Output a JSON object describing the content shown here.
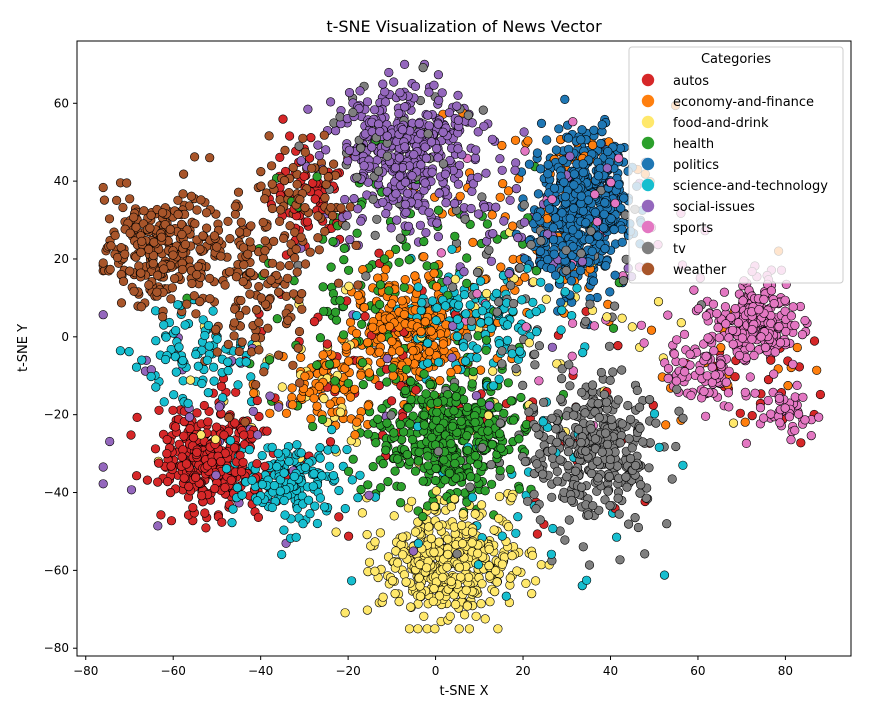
{
  "chart_data": {
    "type": "scatter",
    "title": "t-SNE Visualization of News Vector",
    "xlabel": "t-SNE X",
    "ylabel": "t-SNE Y",
    "xlim": [
      -82,
      95
    ],
    "ylim": [
      -82,
      76
    ],
    "xticks": [
      -80,
      -60,
      -40,
      -20,
      0,
      20,
      40,
      60,
      80
    ],
    "yticks": [
      -80,
      -60,
      -40,
      -20,
      0,
      20,
      40,
      60
    ],
    "xtick_labels": [
      "−80",
      "−60",
      "−40",
      "−20",
      "0",
      "20",
      "40",
      "60",
      "80"
    ],
    "ytick_labels": [
      "−80",
      "−60",
      "−40",
      "−20",
      "0",
      "20",
      "40",
      "60"
    ],
    "grid": false,
    "legend": {
      "title": "Categories",
      "placement": "top-right"
    },
    "series": [
      {
        "name": "autos",
        "color": "#d62728",
        "clusters": [
          {
            "cx": -51,
            "cy": -31,
            "sx": 6,
            "sy": 7,
            "n": 320
          },
          {
            "cx": -30,
            "cy": 35,
            "sx": 5,
            "sy": 6,
            "n": 70
          },
          {
            "cx": -20,
            "cy": -10,
            "sx": 15,
            "sy": 15,
            "n": 60
          },
          {
            "cx": 20,
            "cy": -20,
            "sx": 20,
            "sy": 20,
            "n": 30
          },
          {
            "cx": 75,
            "cy": -12,
            "sx": 8,
            "sy": 8,
            "n": 20
          }
        ]
      },
      {
        "name": "economy-and-finance",
        "color": "#ff7f0e",
        "clusters": [
          {
            "cx": -6,
            "cy": 1,
            "sx": 7,
            "sy": 7,
            "n": 280
          },
          {
            "cx": -25,
            "cy": -13,
            "sx": 6,
            "sy": 5,
            "n": 90
          },
          {
            "cx": 15,
            "cy": 25,
            "sx": 15,
            "sy": 15,
            "n": 80
          },
          {
            "cx": 35,
            "cy": 45,
            "sx": 8,
            "sy": 6,
            "n": 25
          },
          {
            "cx": 70,
            "cy": -10,
            "sx": 10,
            "sy": 10,
            "n": 20
          }
        ]
      },
      {
        "name": "food-and-drink",
        "color": "#ffe86b",
        "clusters": [
          {
            "cx": 3,
            "cy": -58,
            "sx": 8,
            "sy": 7,
            "n": 420
          },
          {
            "cx": -25,
            "cy": -15,
            "sx": 15,
            "sy": 15,
            "n": 50
          },
          {
            "cx": 20,
            "cy": 0,
            "sx": 20,
            "sy": 20,
            "n": 40
          }
        ]
      },
      {
        "name": "health",
        "color": "#2ca02c",
        "clusters": [
          {
            "cx": 3,
            "cy": -25,
            "sx": 9,
            "sy": 8,
            "n": 460
          },
          {
            "cx": -20,
            "cy": 5,
            "sx": 15,
            "sy": 15,
            "n": 70
          },
          {
            "cx": 0,
            "cy": 20,
            "sx": 20,
            "sy": 15,
            "n": 60
          }
        ]
      },
      {
        "name": "politics",
        "color": "#1f77b4",
        "clusters": [
          {
            "cx": 34,
            "cy": 34,
            "sx": 5,
            "sy": 9,
            "n": 500
          },
          {
            "cx": 28,
            "cy": 20,
            "sx": 4,
            "sy": 4,
            "n": 60
          }
        ]
      },
      {
        "name": "science-and-technology",
        "color": "#17becf",
        "clusters": [
          {
            "cx": -33,
            "cy": -37,
            "sx": 6,
            "sy": 6,
            "n": 180
          },
          {
            "cx": -55,
            "cy": -5,
            "sx": 7,
            "sy": 6,
            "n": 90
          },
          {
            "cx": 10,
            "cy": 5,
            "sx": 9,
            "sy": 6,
            "n": 140
          },
          {
            "cx": 20,
            "cy": -40,
            "sx": 15,
            "sy": 15,
            "n": 40
          }
        ]
      },
      {
        "name": "social-issues",
        "color": "#9467bd",
        "clusters": [
          {
            "cx": -7,
            "cy": 47,
            "sx": 8,
            "sy": 9,
            "n": 440
          },
          {
            "cx": 25,
            "cy": 30,
            "sx": 12,
            "sy": 12,
            "n": 50
          },
          {
            "cx": -40,
            "cy": -20,
            "sx": 20,
            "sy": 20,
            "n": 40
          }
        ]
      },
      {
        "name": "sports",
        "color": "#e377c2",
        "clusters": [
          {
            "cx": 73,
            "cy": 5,
            "sx": 5,
            "sy": 5,
            "n": 240
          },
          {
            "cx": 62,
            "cy": -8,
            "sx": 6,
            "sy": 6,
            "n": 100
          },
          {
            "cx": 80,
            "cy": -19,
            "sx": 3,
            "sy": 3,
            "n": 45
          },
          {
            "cx": 45,
            "cy": 20,
            "sx": 20,
            "sy": 20,
            "n": 40
          }
        ]
      },
      {
        "name": "tv",
        "color": "#7f7f7f",
        "clusters": [
          {
            "cx": 36,
            "cy": -30,
            "sx": 7,
            "sy": 9,
            "n": 340
          },
          {
            "cx": 20,
            "cy": 0,
            "sx": 15,
            "sy": 20,
            "n": 80
          },
          {
            "cx": -10,
            "cy": 50,
            "sx": 10,
            "sy": 10,
            "n": 40
          }
        ]
      },
      {
        "name": "weather",
        "color": "#a8552a",
        "clusters": [
          {
            "cx": -62,
            "cy": 22,
            "sx": 7,
            "sy": 7,
            "n": 300
          },
          {
            "cx": -40,
            "cy": 15,
            "sx": 7,
            "sy": 12,
            "n": 150
          },
          {
            "cx": -30,
            "cy": 38,
            "sx": 6,
            "sy": 6,
            "n": 60
          }
        ]
      }
    ]
  }
}
